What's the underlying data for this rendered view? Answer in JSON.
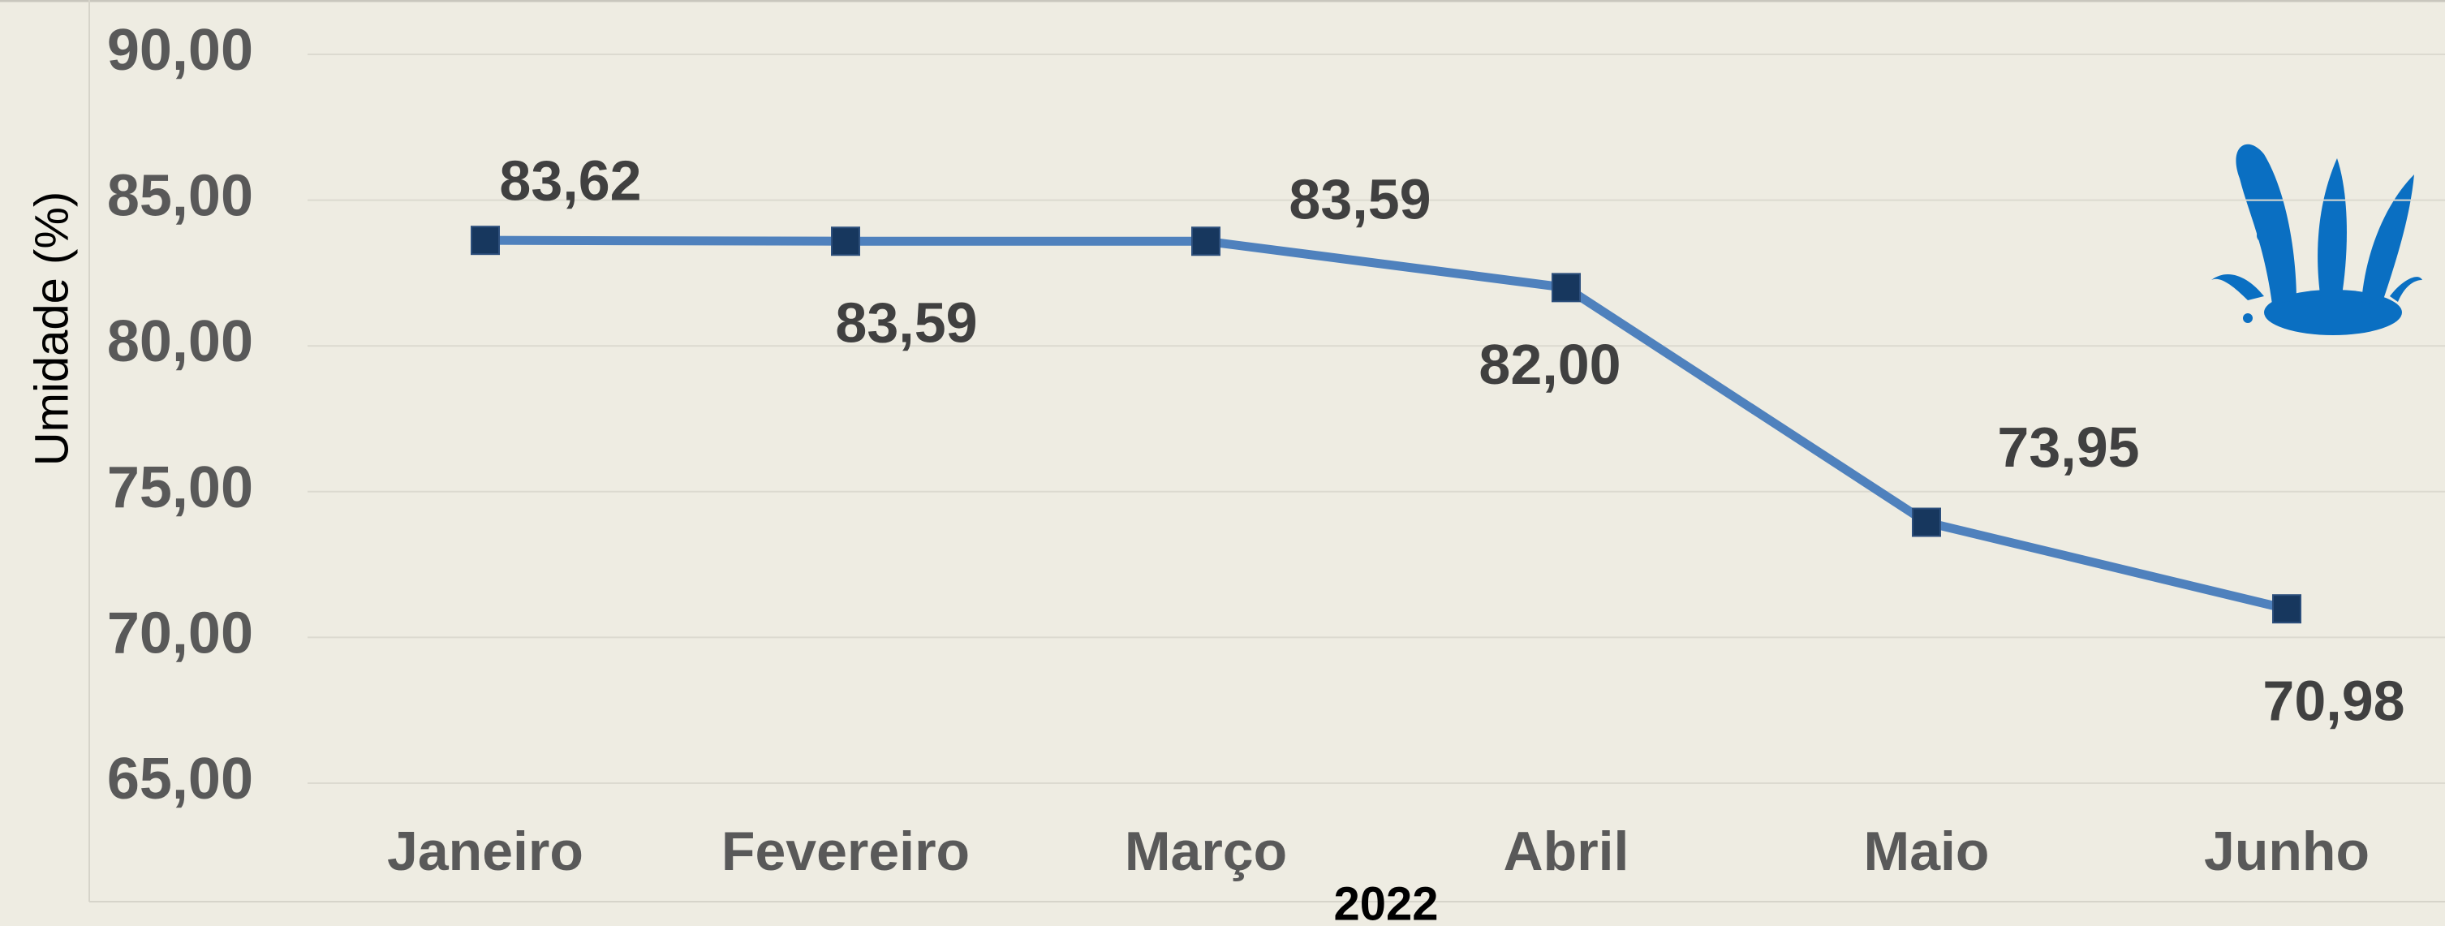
{
  "chart_data": {
    "type": "line",
    "y_label": "Umidade  (%)",
    "x_label": "2022",
    "categories": [
      "Janeiro",
      "Fevereiro",
      "Março",
      "Abril",
      "Maio",
      "Junho"
    ],
    "series": [
      {
        "name": "Umidade",
        "color": "#4f81bd",
        "marker_color": "#17375e",
        "values": [
          83.62,
          83.59,
          83.59,
          82.0,
          73.95,
          70.98
        ],
        "value_labels": [
          "83,62",
          "83,59",
          "83,59",
          "82,00",
          "73,95",
          "70,98"
        ]
      }
    ],
    "ylim": [
      65,
      90
    ],
    "yticks": [
      {
        "value": 65,
        "label": "65,00"
      },
      {
        "value": 70,
        "label": "70,00"
      },
      {
        "value": 75,
        "label": "75,00"
      },
      {
        "value": 80,
        "label": "80,00"
      },
      {
        "value": 85,
        "label": "85,00"
      },
      {
        "value": 90,
        "label": "90,00"
      }
    ],
    "grid": true
  }
}
